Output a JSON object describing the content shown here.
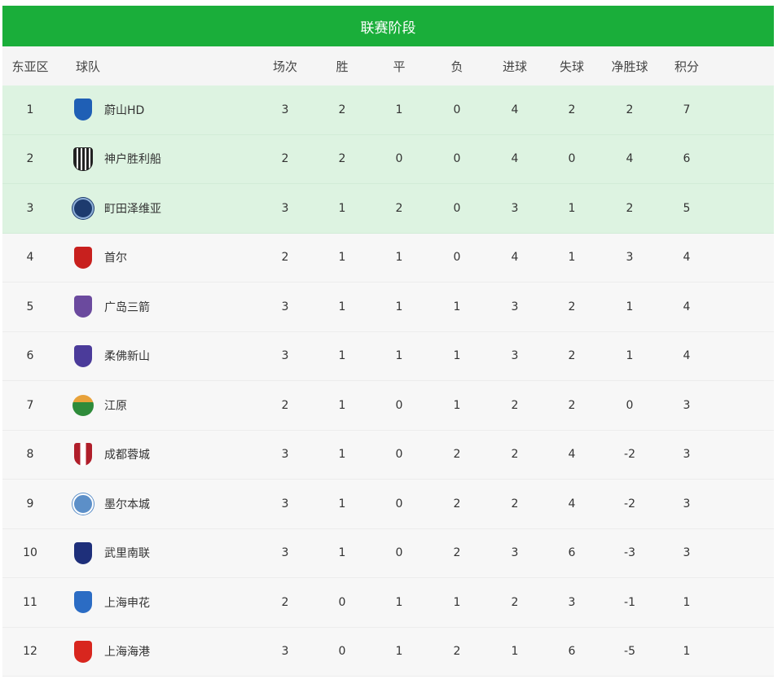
{
  "title": "联赛阶段",
  "columns": [
    "东亚区",
    "球队",
    "场次",
    "胜",
    "平",
    "负",
    "进球",
    "失球",
    "净胜球",
    "积分"
  ],
  "rows": [
    {
      "rank": "1",
      "team": "蔚山HD",
      "logo": "ulsan-logo",
      "color": "#1f5fb5",
      "played": "3",
      "w": "2",
      "d": "1",
      "l": "0",
      "gf": "4",
      "ga": "2",
      "gd": "2",
      "pts": "7"
    },
    {
      "rank": "2",
      "team": "神户胜利船",
      "logo": "kobe-logo",
      "color": "#222222",
      "played": "2",
      "w": "2",
      "d": "0",
      "l": "0",
      "gf": "4",
      "ga": "0",
      "gd": "4",
      "pts": "6"
    },
    {
      "rank": "3",
      "team": "町田泽维亚",
      "logo": "machida-logo",
      "color": "#1d3b6e",
      "played": "3",
      "w": "1",
      "d": "2",
      "l": "0",
      "gf": "3",
      "ga": "1",
      "gd": "2",
      "pts": "5"
    },
    {
      "rank": "4",
      "team": "首尔",
      "logo": "seoul-logo",
      "color": "#c8201e",
      "played": "2",
      "w": "1",
      "d": "1",
      "l": "0",
      "gf": "4",
      "ga": "1",
      "gd": "3",
      "pts": "4"
    },
    {
      "rank": "5",
      "team": "广岛三箭",
      "logo": "hiroshima-logo",
      "color": "#6b4a9e",
      "played": "3",
      "w": "1",
      "d": "1",
      "l": "1",
      "gf": "3",
      "ga": "2",
      "gd": "1",
      "pts": "4"
    },
    {
      "rank": "6",
      "team": "柔佛新山",
      "logo": "johor-logo",
      "color": "#4b3b9a",
      "played": "3",
      "w": "1",
      "d": "1",
      "l": "1",
      "gf": "3",
      "ga": "2",
      "gd": "1",
      "pts": "4"
    },
    {
      "rank": "7",
      "team": "江原",
      "logo": "gangwon-logo",
      "color": "#2e8b3a",
      "played": "2",
      "w": "1",
      "d": "0",
      "l": "1",
      "gf": "2",
      "ga": "2",
      "gd": "0",
      "pts": "3"
    },
    {
      "rank": "8",
      "team": "成都蓉城",
      "logo": "chengdu-logo",
      "color": "#b01e2a",
      "played": "3",
      "w": "1",
      "d": "0",
      "l": "2",
      "gf": "2",
      "ga": "4",
      "gd": "-2",
      "pts": "3"
    },
    {
      "rank": "9",
      "team": "墨尔本城",
      "logo": "melbourne-logo",
      "color": "#5c8fc8",
      "played": "3",
      "w": "1",
      "d": "0",
      "l": "2",
      "gf": "2",
      "ga": "4",
      "gd": "-2",
      "pts": "3"
    },
    {
      "rank": "10",
      "team": "武里南联",
      "logo": "buriram-logo",
      "color": "#1e2f7a",
      "played": "3",
      "w": "1",
      "d": "0",
      "l": "2",
      "gf": "3",
      "ga": "6",
      "gd": "-3",
      "pts": "3"
    },
    {
      "rank": "11",
      "team": "上海申花",
      "logo": "shenhua-logo",
      "color": "#2b6cc4",
      "played": "2",
      "w": "0",
      "d": "1",
      "l": "1",
      "gf": "2",
      "ga": "3",
      "gd": "-1",
      "pts": "1"
    },
    {
      "rank": "12",
      "team": "上海海港",
      "logo": "port-logo",
      "color": "#d8261e",
      "played": "3",
      "w": "0",
      "d": "1",
      "l": "2",
      "gf": "1",
      "ga": "6",
      "gd": "-5",
      "pts": "1"
    }
  ],
  "colors": {
    "header": "#1aae3a",
    "qualified_row": "#ddf3e1",
    "row": "#f7f7f7"
  }
}
